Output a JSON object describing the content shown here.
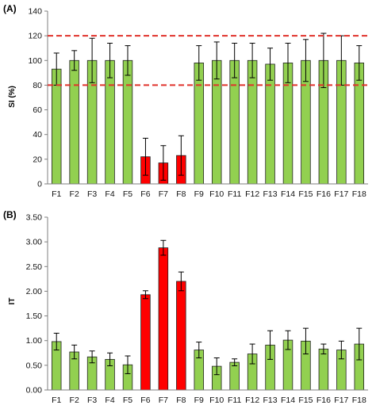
{
  "colors": {
    "normal": "#92d050",
    "highlight": "#ff0000",
    "bar_edge": "#222222",
    "reference_line": "#e0322b",
    "axis": "#7f7f7f"
  },
  "chart_data": [
    {
      "type": "bar",
      "panel_label": "(A)",
      "ylabel": "SI (%)",
      "xlabel": "",
      "categories": [
        "F1",
        "F2",
        "F3",
        "F4",
        "F5",
        "F6",
        "F7",
        "F8",
        "F9",
        "F10",
        "F11",
        "F12",
        "F13",
        "F14",
        "F15",
        "F16",
        "F17",
        "F18"
      ],
      "values": [
        93,
        100,
        100,
        100,
        100,
        22,
        17,
        23,
        98,
        100,
        100,
        100,
        97,
        98,
        100,
        100,
        100,
        98
      ],
      "errors": [
        13,
        8,
        18,
        14,
        12,
        15,
        14,
        16,
        14,
        15,
        14,
        14,
        13,
        16,
        17,
        22,
        20,
        14
      ],
      "highlight": [
        false,
        false,
        false,
        false,
        false,
        true,
        true,
        true,
        false,
        false,
        false,
        false,
        false,
        false,
        false,
        false,
        false,
        false
      ],
      "ylim": [
        0,
        140
      ],
      "yticks": [
        "0",
        "20",
        "40",
        "60",
        "80",
        "100",
        "120",
        "140"
      ],
      "reference_lines": [
        80,
        120
      ],
      "grid": false,
      "legend": "none"
    },
    {
      "type": "bar",
      "panel_label": "(B)",
      "ylabel": "IT",
      "xlabel": "",
      "categories": [
        "F1",
        "F2",
        "F3",
        "F4",
        "F5",
        "F6",
        "F7",
        "F8",
        "F9",
        "F10",
        "F11",
        "F12",
        "F13",
        "F14",
        "F15",
        "F16",
        "F17",
        "F18"
      ],
      "values": [
        0.98,
        0.77,
        0.67,
        0.62,
        0.51,
        1.93,
        2.88,
        2.2,
        0.81,
        0.48,
        0.56,
        0.73,
        0.91,
        1.01,
        0.99,
        0.83,
        0.81,
        0.93
      ],
      "errors": [
        0.17,
        0.14,
        0.12,
        0.13,
        0.18,
        0.08,
        0.15,
        0.19,
        0.16,
        0.17,
        0.07,
        0.2,
        0.29,
        0.19,
        0.26,
        0.1,
        0.18,
        0.32
      ],
      "highlight": [
        false,
        false,
        false,
        false,
        false,
        true,
        true,
        true,
        false,
        false,
        false,
        false,
        false,
        false,
        false,
        false,
        false,
        false
      ],
      "ylim": [
        0,
        3.5
      ],
      "yticks": [
        "0.00",
        "0.50",
        "1.00",
        "1.50",
        "2.00",
        "2.50",
        "3.00",
        "3.50"
      ],
      "reference_lines": [],
      "grid": false,
      "legend": "none"
    }
  ]
}
